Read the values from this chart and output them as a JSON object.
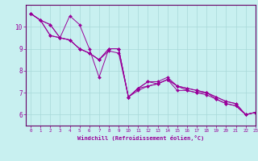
{
  "xlabel": "Windchill (Refroidissement éolien,°C)",
  "background_color": "#c8f0f0",
  "grid_color": "#a8d8d8",
  "line_color": "#990099",
  "spine_color": "#660066",
  "xlim": [
    -0.5,
    23
  ],
  "ylim": [
    5.5,
    11.0
  ],
  "xticks": [
    0,
    1,
    2,
    3,
    4,
    5,
    6,
    7,
    8,
    9,
    10,
    11,
    12,
    13,
    14,
    15,
    16,
    17,
    18,
    19,
    20,
    21,
    22,
    23
  ],
  "yticks": [
    6,
    7,
    8,
    9,
    10
  ],
  "series": [
    [
      10.6,
      10.3,
      10.1,
      9.5,
      10.5,
      10.1,
      9.0,
      7.7,
      9.0,
      9.0,
      6.8,
      7.2,
      7.5,
      7.5,
      7.7,
      7.3,
      7.2,
      7.1,
      7.0,
      6.8,
      6.6,
      6.5,
      6.0,
      6.1
    ],
    [
      10.6,
      10.3,
      10.1,
      9.5,
      9.4,
      9.0,
      8.8,
      8.5,
      9.0,
      9.0,
      6.8,
      7.2,
      7.5,
      7.4,
      7.6,
      7.3,
      7.2,
      7.1,
      7.0,
      6.8,
      6.6,
      6.5,
      6.0,
      6.1
    ],
    [
      10.6,
      10.3,
      9.6,
      9.5,
      9.4,
      9.0,
      8.8,
      8.5,
      9.0,
      9.0,
      6.8,
      7.2,
      7.3,
      7.4,
      7.6,
      7.3,
      7.1,
      7.0,
      7.0,
      6.7,
      6.5,
      6.4,
      6.0,
      6.1
    ],
    [
      10.6,
      10.3,
      9.6,
      9.5,
      9.4,
      9.0,
      8.8,
      8.5,
      8.9,
      8.8,
      6.8,
      7.1,
      7.3,
      7.4,
      7.6,
      7.1,
      7.1,
      7.0,
      6.9,
      6.7,
      6.5,
      6.4,
      6.0,
      6.1
    ]
  ]
}
